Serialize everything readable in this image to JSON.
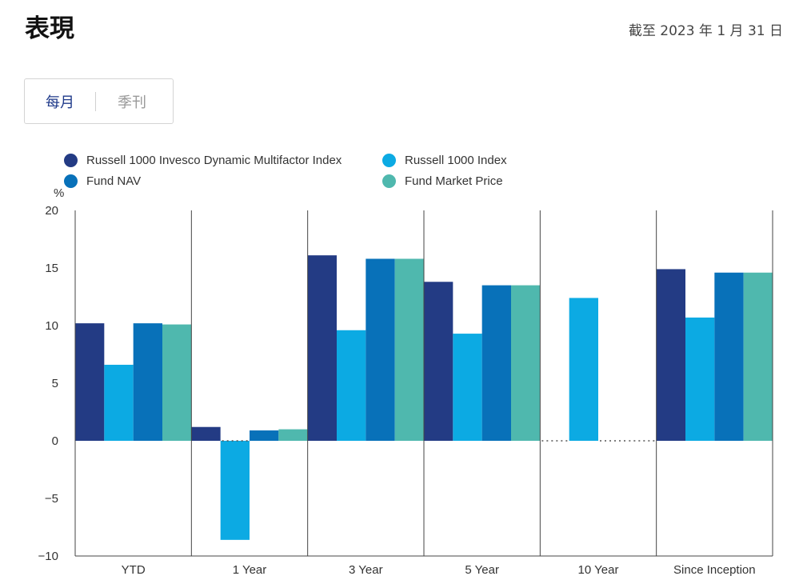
{
  "header": {
    "title": "表現",
    "as_of": "截至 2023 年 1 月 31 日"
  },
  "tabs": [
    {
      "label": "每月",
      "active": true
    },
    {
      "label": "季刊",
      "active": false
    }
  ],
  "chart_data": {
    "type": "bar",
    "ylabel": "%",
    "ylim": [
      -10,
      20
    ],
    "yticks": [
      20,
      15,
      10,
      5,
      0,
      -5,
      -10
    ],
    "ytick_labels": [
      "20",
      "15",
      "10",
      "5",
      "0",
      "−5",
      "−10"
    ],
    "categories": [
      "YTD",
      "1 Year",
      "3 Year",
      "5 Year",
      "10 Year",
      "Since Inception"
    ],
    "legend_position": "top-left",
    "series": [
      {
        "name": "Russell 1000 Invesco Dynamic Multifactor Index",
        "color": "#233b84",
        "values": [
          10.2,
          1.2,
          16.1,
          13.8,
          null,
          14.9
        ]
      },
      {
        "name": "Russell 1000 Index",
        "color": "#0caae3",
        "values": [
          6.6,
          -8.6,
          9.6,
          9.3,
          12.4,
          10.7
        ]
      },
      {
        "name": "Fund NAV",
        "color": "#0871b9",
        "values": [
          10.2,
          0.9,
          15.8,
          13.5,
          null,
          14.6
        ]
      },
      {
        "name": "Fund Market Price",
        "color": "#4fb8ae",
        "values": [
          10.1,
          1.0,
          15.8,
          13.5,
          null,
          14.6
        ]
      }
    ]
  }
}
